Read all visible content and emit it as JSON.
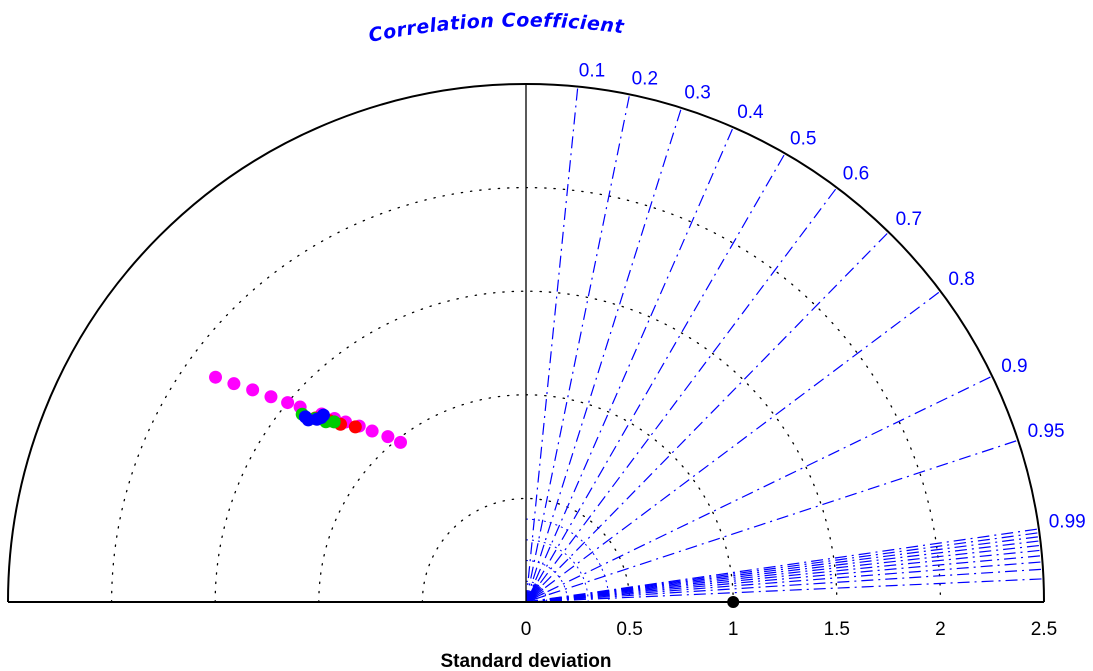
{
  "chart_data": {
    "type": "scatter",
    "subtype": "taylor-diagram",
    "title": "Correlation Coefficient",
    "xlabel": "Standard deviation",
    "std_max": 2.5,
    "std_ticks": [
      "0",
      "0.5",
      "1",
      "1.5",
      "2",
      "2.5"
    ],
    "std_ring_values": [
      0.5,
      1,
      1.5,
      2
    ],
    "correlation_ticks": [
      "0.1",
      "0.2",
      "0.3",
      "0.4",
      "0.5",
      "0.6",
      "0.7",
      "0.8",
      "0.9",
      "0.95",
      "0.99"
    ],
    "extra_correlation_lines": [
      0.991,
      0.992,
      0.993,
      0.994,
      0.995,
      0.996,
      0.997,
      0.998,
      0.999
    ],
    "reference": {
      "std": 1.0,
      "correlation": 1.0,
      "color": "#000000"
    },
    "grid": true,
    "series": [
      {
        "color": "#ff00ff",
        "points": [
          {
            "std": 1.85,
            "corr": -0.81
          },
          {
            "std": 1.76,
            "corr": -0.801
          },
          {
            "std": 1.67,
            "corr": -0.79
          },
          {
            "std": 1.58,
            "corr": -0.779
          },
          {
            "std": 1.5,
            "corr": -0.767
          },
          {
            "std": 1.44,
            "corr": -0.757
          },
          {
            "std": 1.34,
            "corr": -0.736
          },
          {
            "std": 1.28,
            "corr": -0.722
          },
          {
            "std": 1.23,
            "corr": -0.708
          },
          {
            "std": 1.17,
            "corr": -0.688
          },
          {
            "std": 1.11,
            "corr": -0.669
          },
          {
            "std": 1.04,
            "corr": -0.641
          },
          {
            "std": 0.98,
            "corr": -0.618
          }
        ]
      },
      {
        "color": "#ff0000",
        "points": [
          {
            "std": 1.35,
            "corr": -0.753
          },
          {
            "std": 1.29,
            "corr": -0.735
          },
          {
            "std": 1.24,
            "corr": -0.722
          },
          {
            "std": 1.18,
            "corr": -0.698
          }
        ]
      },
      {
        "color": "#00cc00",
        "points": [
          {
            "std": 1.41,
            "corr": -0.766
          },
          {
            "std": 1.35,
            "corr": -0.755
          },
          {
            "std": 1.3,
            "corr": -0.743
          },
          {
            "std": 1.27,
            "corr": -0.729
          }
        ]
      },
      {
        "color": "#0000ff",
        "points": [
          {
            "std": 1.39,
            "corr": -0.766
          },
          {
            "std": 1.37,
            "corr": -0.767
          },
          {
            "std": 1.34,
            "corr": -0.753
          },
          {
            "std": 1.33,
            "corr": -0.743
          },
          {
            "std": 1.33,
            "corr": -0.735
          }
        ]
      }
    ],
    "colors": {
      "axis": "#000000",
      "correlation_lines": "#0000ff",
      "grid_rings": "#000000"
    }
  }
}
